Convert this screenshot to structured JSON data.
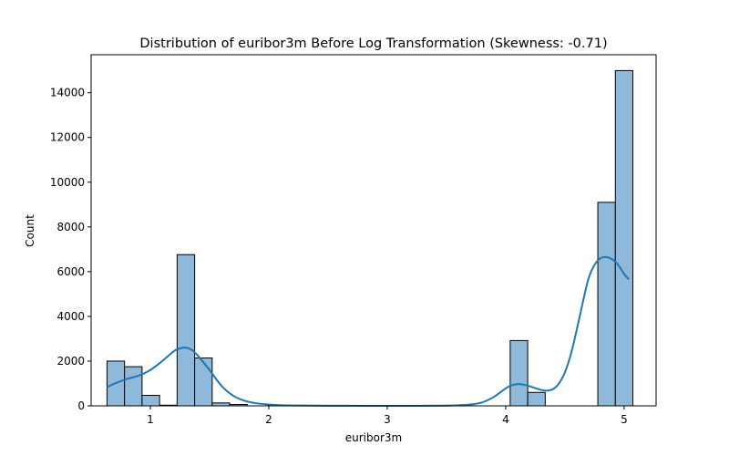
{
  "chart_data": {
    "type": "bar",
    "title": "Distribution of euribor3m Before Log Transformation (Skewness: -0.71)",
    "xlabel": "euribor3m",
    "ylabel": "Count",
    "xlim": [
      0.5,
      5.27
    ],
    "ylim": [
      0,
      15700
    ],
    "x_ticks": [
      1,
      2,
      3,
      4,
      5
    ],
    "y_ticks": [
      0,
      2000,
      4000,
      6000,
      8000,
      10000,
      12000,
      14000
    ],
    "grid": false,
    "legend": "none",
    "bar_color": "#8fb9da",
    "bar_edge_color": "#000000",
    "kde_color": "#1f77b4",
    "bins": [
      {
        "x0": 0.634,
        "x1": 0.782,
        "count": 2000
      },
      {
        "x0": 0.782,
        "x1": 0.93,
        "count": 1750
      },
      {
        "x0": 0.93,
        "x1": 1.078,
        "count": 470
      },
      {
        "x0": 1.078,
        "x1": 1.226,
        "count": 30
      },
      {
        "x0": 1.226,
        "x1": 1.374,
        "count": 6760
      },
      {
        "x0": 1.374,
        "x1": 1.522,
        "count": 2140
      },
      {
        "x0": 1.522,
        "x1": 1.67,
        "count": 130
      },
      {
        "x0": 1.67,
        "x1": 1.818,
        "count": 60
      },
      {
        "x0": 1.818,
        "x1": 1.966,
        "count": 0
      },
      {
        "x0": 1.966,
        "x1": 2.114,
        "count": 0
      },
      {
        "x0": 2.114,
        "x1": 2.262,
        "count": 0
      },
      {
        "x0": 2.262,
        "x1": 2.41,
        "count": 0
      },
      {
        "x0": 2.41,
        "x1": 2.558,
        "count": 0
      },
      {
        "x0": 2.558,
        "x1": 2.706,
        "count": 0
      },
      {
        "x0": 2.706,
        "x1": 2.854,
        "count": 0
      },
      {
        "x0": 2.854,
        "x1": 3.002,
        "count": 0
      },
      {
        "x0": 3.002,
        "x1": 3.15,
        "count": 0
      },
      {
        "x0": 3.15,
        "x1": 3.298,
        "count": 0
      },
      {
        "x0": 3.298,
        "x1": 3.446,
        "count": 0
      },
      {
        "x0": 3.446,
        "x1": 3.594,
        "count": 0
      },
      {
        "x0": 3.594,
        "x1": 3.742,
        "count": 0
      },
      {
        "x0": 3.742,
        "x1": 3.89,
        "count": 0
      },
      {
        "x0": 3.89,
        "x1": 4.038,
        "count": 0
      },
      {
        "x0": 4.038,
        "x1": 4.186,
        "count": 2920
      },
      {
        "x0": 4.186,
        "x1": 4.334,
        "count": 600
      },
      {
        "x0": 4.334,
        "x1": 4.482,
        "count": 0
      },
      {
        "x0": 4.482,
        "x1": 4.63,
        "count": 0
      },
      {
        "x0": 4.63,
        "x1": 4.778,
        "count": 0
      },
      {
        "x0": 4.778,
        "x1": 4.926,
        "count": 9100
      },
      {
        "x0": 4.926,
        "x1": 5.074,
        "count": 14990
      }
    ],
    "kde": {
      "x": [
        0.634,
        0.7,
        0.8,
        0.9,
        1.0,
        1.1,
        1.2,
        1.25,
        1.3,
        1.35,
        1.4,
        1.5,
        1.6,
        1.7,
        1.8,
        1.9,
        2.0,
        2.1,
        2.25,
        2.5,
        3.0,
        3.5,
        3.7,
        3.8,
        3.9,
        4.0,
        4.05,
        4.1,
        4.15,
        4.2,
        4.3,
        4.35,
        4.4,
        4.45,
        4.5,
        4.55,
        4.6,
        4.65,
        4.7,
        4.75,
        4.8,
        4.85,
        4.9,
        4.95,
        5.0,
        5.04
      ],
      "y": [
        830,
        1000,
        1200,
        1350,
        1600,
        2000,
        2450,
        2570,
        2600,
        2500,
        2250,
        1600,
        900,
        450,
        220,
        110,
        60,
        30,
        15,
        5,
        0,
        10,
        60,
        150,
        400,
        780,
        920,
        970,
        950,
        880,
        710,
        680,
        750,
        1000,
        1500,
        2300,
        3400,
        4600,
        5700,
        6300,
        6600,
        6650,
        6550,
        6300,
        5900,
        5650
      ]
    }
  }
}
